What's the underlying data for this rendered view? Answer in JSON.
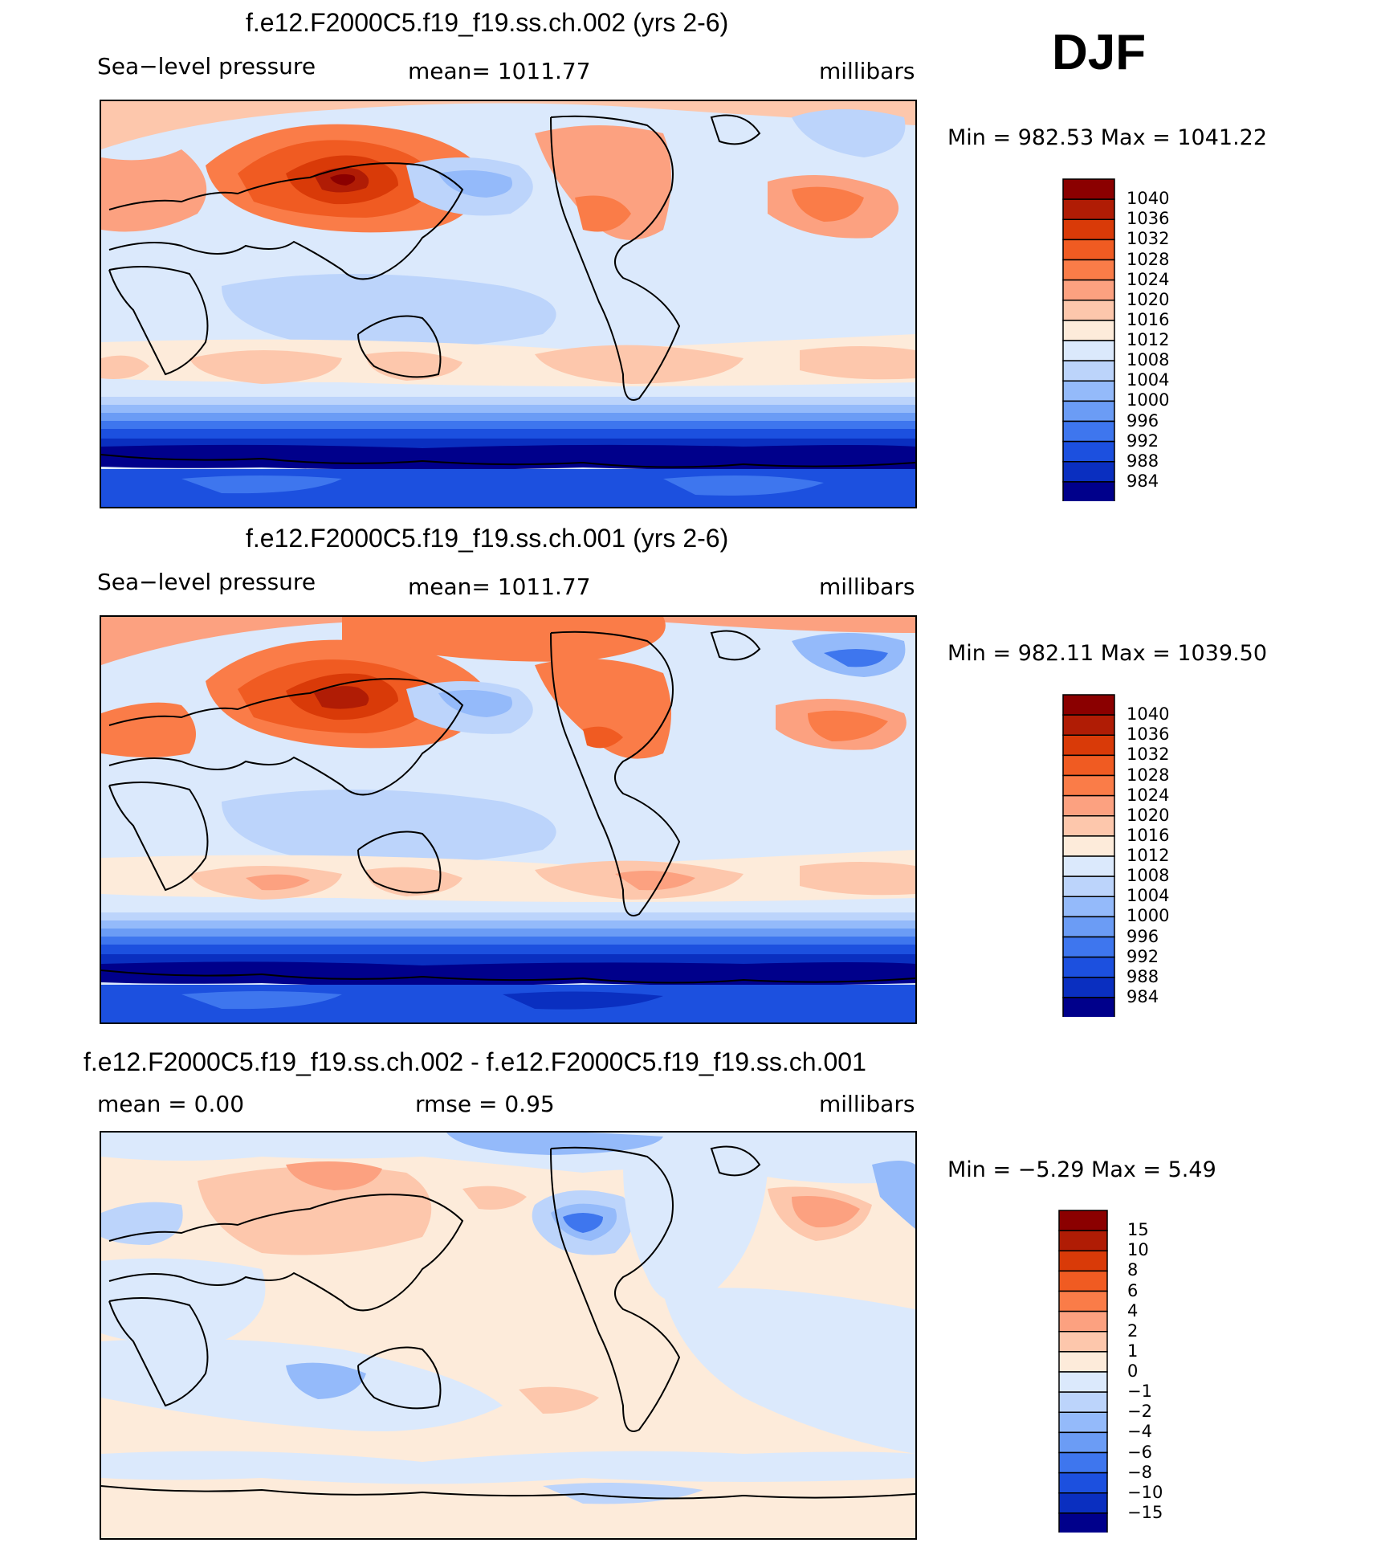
{
  "season": "DJF",
  "panels": [
    {
      "title": "f.e12.F2000C5.f19_f19.ss.ch.002 (yrs 2-6)",
      "variable": "Sea−level pressure",
      "stat": "mean=  1011.77",
      "units": "millibars",
      "minmax": "Min  =  982.53  Max  =  1041.22",
      "levels": [
        "1040",
        "1036",
        "1032",
        "1028",
        "1024",
        "1020",
        "1016",
        "1012",
        "1008",
        "1004",
        "1000",
        "996",
        "992",
        "988",
        "984"
      ]
    },
    {
      "title": "f.e12.F2000C5.f19_f19.ss.ch.001 (yrs 2-6)",
      "variable": "Sea−level pressure",
      "stat": "mean=  1011.77",
      "units": "millibars",
      "minmax": "Min  =  982.11  Max  =  1039.50",
      "levels": [
        "1040",
        "1036",
        "1032",
        "1028",
        "1024",
        "1020",
        "1016",
        "1012",
        "1008",
        "1004",
        "1000",
        "996",
        "992",
        "988",
        "984"
      ]
    },
    {
      "title": "f.e12.F2000C5.f19_f19.ss.ch.002 - f.e12.F2000C5.f19_f19.ss.ch.001",
      "stat_mean": "mean  =      0.00",
      "stat_rmse": "rmse  =      0.95",
      "units": "millibars",
      "minmax": "Min  =    −5.29  Max  =      5.49",
      "levels": [
        "15",
        "10",
        "8",
        "6",
        "4",
        "2",
        "1",
        "0",
        "−1",
        "−2",
        "−4",
        "−6",
        "−8",
        "−10",
        "−15"
      ]
    }
  ],
  "colors": {
    "c1040": "#8b0000",
    "c1036": "#b01c05",
    "c1032": "#d93a08",
    "c1028": "#f05b22",
    "c1024": "#fa7c48",
    "c1020": "#fca180",
    "c1016": "#fdc7ac",
    "c1012": "#fdebda",
    "c1008": "#dbe9fc",
    "c1004": "#bcd4fb",
    "c1000": "#94bafa",
    "c996": "#6b9cf5",
    "c992": "#3e76ee",
    "c988": "#1c50df",
    "c984": "#0a2fc0",
    "c980": "#00008b"
  },
  "chart_data": [
    {
      "type": "heatmap",
      "title": "f.e12.F2000C5.f19_f19.ss.ch.002 (yrs 2-6)",
      "variable": "Sea-level pressure",
      "units": "millibars",
      "season": "DJF",
      "mean": 1011.77,
      "min": 982.53,
      "max": 1041.22,
      "contour_levels": [
        984,
        988,
        992,
        996,
        1000,
        1004,
        1008,
        1012,
        1016,
        1020,
        1024,
        1028,
        1032,
        1036,
        1040
      ]
    },
    {
      "type": "heatmap",
      "title": "f.e12.F2000C5.f19_f19.ss.ch.001 (yrs 2-6)",
      "variable": "Sea-level pressure",
      "units": "millibars",
      "season": "DJF",
      "mean": 1011.77,
      "min": 982.11,
      "max": 1039.5,
      "contour_levels": [
        984,
        988,
        992,
        996,
        1000,
        1004,
        1008,
        1012,
        1016,
        1020,
        1024,
        1028,
        1032,
        1036,
        1040
      ]
    },
    {
      "type": "heatmap",
      "title": "f.e12.F2000C5.f19_f19.ss.ch.002 - f.e12.F2000C5.f19_f19.ss.ch.001",
      "units": "millibars",
      "mean": 0.0,
      "rmse": 0.95,
      "min": -5.29,
      "max": 5.49,
      "contour_levels": [
        -15,
        -10,
        -8,
        -6,
        -4,
        -2,
        -1,
        0,
        1,
        2,
        4,
        6,
        8,
        10,
        15
      ]
    }
  ]
}
